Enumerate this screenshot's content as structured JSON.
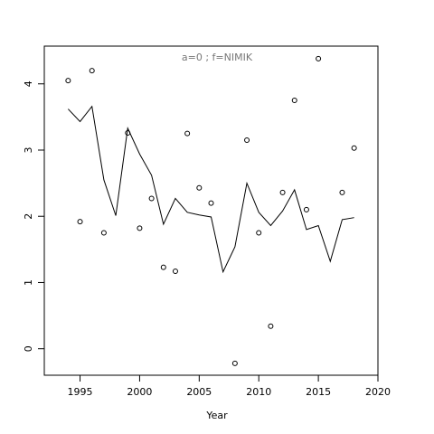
{
  "chart_data": {
    "type": "line",
    "title": "a=0 ; f=NIMIK",
    "x_label": "Year",
    "x": [
      1994,
      1995,
      1996,
      1997,
      1998,
      1999,
      2000,
      2001,
      2002,
      2003,
      2004,
      2005,
      2006,
      2007,
      2008,
      2009,
      2010,
      2011,
      2012,
      2013,
      2014,
      2015,
      2016,
      2017,
      2018
    ],
    "series": [
      {
        "kind": "points",
        "color": "#000000",
        "values": [
          4.05,
          1.92,
          4.2,
          1.75,
          null,
          3.26,
          1.82,
          2.27,
          1.23,
          1.17,
          3.25,
          2.43,
          2.2,
          null,
          -0.22,
          3.15,
          1.75,
          0.34,
          2.36,
          3.75,
          2.1,
          4.38,
          null,
          2.36,
          3.03
        ]
      },
      {
        "kind": "line",
        "color": "#000000",
        "values": [
          3.62,
          3.43,
          3.66,
          2.55,
          2.01,
          3.33,
          2.94,
          2.62,
          1.88,
          2.27,
          2.06,
          2.02,
          1.99,
          1.16,
          1.54,
          2.5,
          2.06,
          1.86,
          2.08,
          2.4,
          1.8,
          1.86,
          1.32,
          1.95,
          1.98
        ]
      }
    ],
    "xlim": [
      1992,
      2020
    ],
    "ylim": [
      -0.4,
      4.57
    ],
    "xticks": [
      1995,
      2000,
      2005,
      2010,
      2015,
      2020
    ],
    "yticks": [
      0,
      1,
      2,
      3,
      4
    ]
  }
}
